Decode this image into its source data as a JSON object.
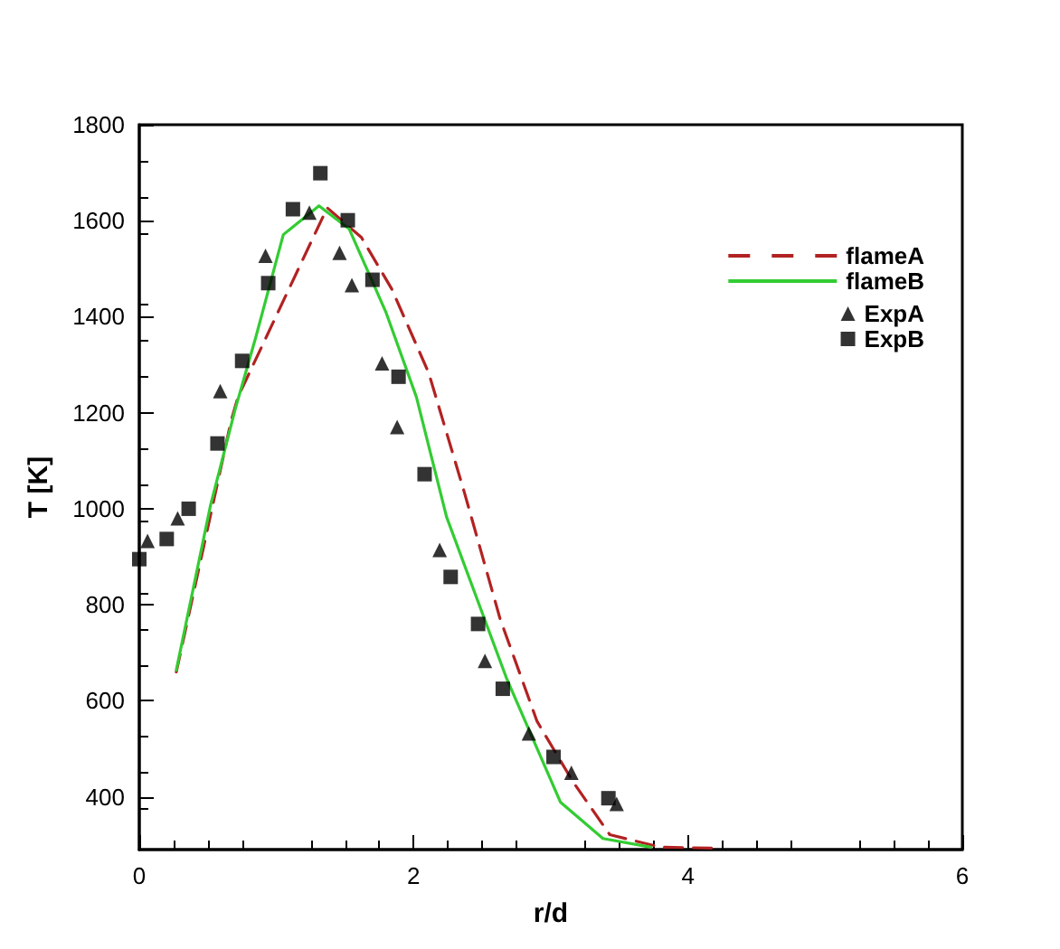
{
  "chart_data": {
    "type": "line",
    "xlabel": "r/d",
    "ylabel": "T [K]",
    "xlim": [
      0,
      6
    ],
    "xticks": [
      0,
      2,
      4,
      6
    ],
    "ylim": [
      290,
      1800
    ],
    "yticks": [
      400,
      600,
      800,
      1000,
      1200,
      1400,
      1600,
      1800
    ],
    "grid": false,
    "legend": "top right",
    "series": [
      {
        "name": "flameA",
        "type": "line",
        "color": "#b22222",
        "line_style": "dashed",
        "marker": "none",
        "x": [
          0.27,
          0.67,
          0.72,
          1.37,
          1.62,
          1.84,
          2.11,
          2.37,
          2.63,
          2.9,
          3.16,
          3.43,
          3.8,
          4.2
        ],
        "values": [
          660,
          1184,
          1233,
          1627,
          1565,
          1458,
          1283,
          1034,
          771,
          557,
          432,
          321,
          295,
          293
        ]
      },
      {
        "name": "flameB",
        "type": "line",
        "color": "#33cc33",
        "line_style": "solid",
        "marker": "none",
        "x": [
          0.27,
          0.52,
          0.7,
          0.85,
          1.05,
          1.31,
          1.53,
          1.8,
          2.02,
          2.24,
          2.68,
          3.07,
          3.38,
          3.73
        ],
        "values": [
          664,
          1008,
          1208,
          1358,
          1571,
          1631,
          1583,
          1408,
          1233,
          983,
          645,
          389,
          313,
          295
        ]
      },
      {
        "name": "ExpA",
        "type": "scatter",
        "color": "#000000",
        "marker": "triangle",
        "x": [
          0.06,
          0.28,
          0.59,
          0.92,
          1.24,
          1.46,
          1.55,
          1.77,
          1.88,
          2.19,
          2.52,
          2.84,
          3.15,
          3.48
        ],
        "values": [
          933,
          980,
          1245,
          1527,
          1617,
          1533,
          1466,
          1303,
          1170,
          914,
          683,
          532,
          450,
          385
        ]
      },
      {
        "name": "ExpB",
        "type": "scatter",
        "color": "#000000",
        "marker": "square",
        "x": [
          0,
          0.2,
          0.36,
          0.57,
          0.75,
          0.94,
          1.12,
          1.32,
          1.52,
          1.7,
          1.89,
          2.08,
          2.27,
          2.47,
          2.65,
          3.02,
          3.42
        ],
        "values": [
          895,
          937,
          1000,
          1136,
          1308,
          1470,
          1624,
          1699,
          1601,
          1477,
          1275,
          1072,
          858,
          760,
          625,
          483,
          397
        ]
      }
    ]
  }
}
